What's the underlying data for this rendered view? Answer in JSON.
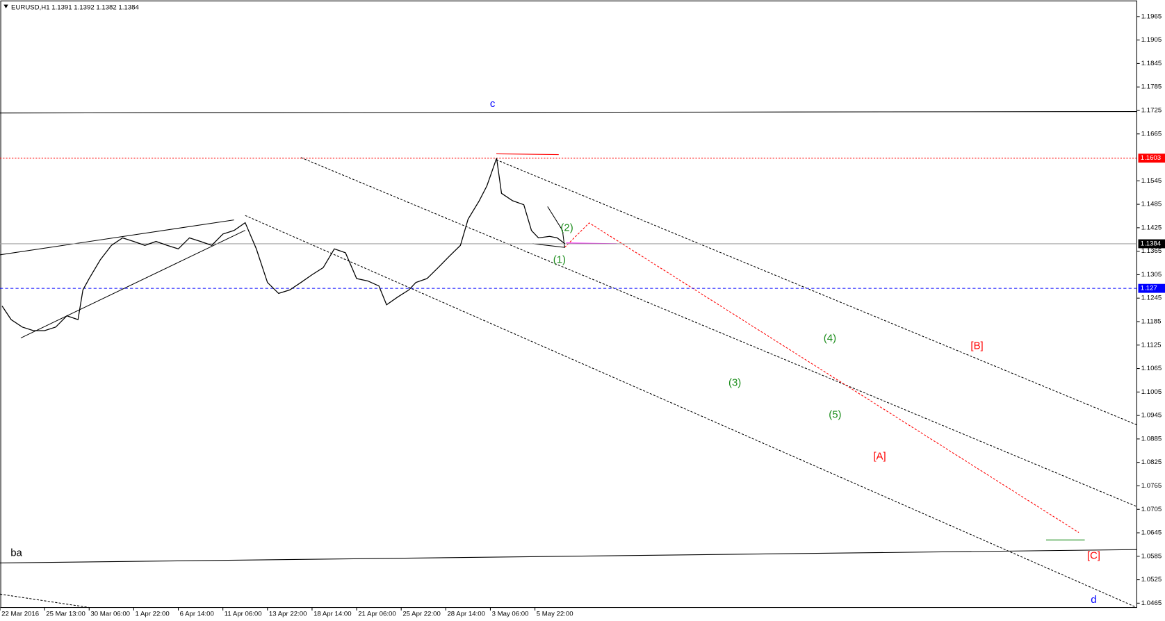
{
  "chart_data": {
    "type": "line",
    "title": "EURUSD,H1  1.1391 1.1392 1.1382 1.1384",
    "color": "#000000",
    "x": [
      3,
      16,
      32,
      48,
      64,
      80,
      96,
      112,
      119,
      128,
      144,
      160,
      176,
      192,
      208,
      224,
      240,
      256,
      272,
      288,
      304,
      320,
      336,
      352,
      368,
      384,
      400,
      416,
      432,
      448,
      464,
      480,
      496,
      512,
      528,
      544,
      555,
      571,
      587,
      597,
      613,
      629,
      645,
      661,
      672,
      688,
      699,
      713,
      720,
      736,
      752,
      763,
      773,
      789,
      800,
      811
    ],
    "values": [
      1.1225,
      1.119,
      1.1171,
      1.1162,
      1.1162,
      1.1171,
      1.12,
      1.119,
      1.1266,
      1.1295,
      1.1343,
      1.138,
      1.1399,
      1.139,
      1.138,
      1.139,
      1.138,
      1.1371,
      1.1399,
      1.139,
      1.138,
      1.1409,
      1.1418,
      1.1438,
      1.1371,
      1.1285,
      1.1257,
      1.1266,
      1.1285,
      1.1305,
      1.1323,
      1.1371,
      1.1361,
      1.1295,
      1.1289,
      1.1276,
      1.1228,
      1.1248,
      1.1266,
      1.1285,
      1.1295,
      1.1323,
      1.1352,
      1.138,
      1.1447,
      1.1494,
      1.1532,
      1.1603,
      1.1513,
      1.1494,
      1.1484,
      1.1418,
      1.1399,
      1.1403,
      1.1399,
      1.1384
    ],
    "xlim": [
      0,
      1632
    ],
    "ylim": [
      1.0454,
      1.2007
    ],
    "xticks": [
      {
        "value": 0,
        "label": "22 Mar 2016"
      },
      {
        "value": 64,
        "label": "25 Mar 13:00"
      },
      {
        "value": 128,
        "label": "30 Mar 06:00"
      },
      {
        "value": 192,
        "label": "1 Apr 22:00"
      },
      {
        "value": 256,
        "label": "6 Apr 14:00"
      },
      {
        "value": 320,
        "label": "11 Apr 06:00"
      },
      {
        "value": 384,
        "label": "13 Apr 22:00"
      },
      {
        "value": 448,
        "label": "18 Apr 14:00"
      },
      {
        "value": 512,
        "label": "21 Apr 06:00"
      },
      {
        "value": 576,
        "label": "25 Apr 22:00"
      },
      {
        "value": 640,
        "label": "28 Apr 14:00"
      },
      {
        "value": 704,
        "label": "3 May 06:00"
      },
      {
        "value": 768,
        "label": "5 May 22:00"
      }
    ],
    "yticks": [
      1.0465,
      1.0525,
      1.0585,
      1.0645,
      1.0705,
      1.0765,
      1.0825,
      1.0885,
      1.0945,
      1.1005,
      1.1065,
      1.1125,
      1.1185,
      1.1245,
      1.1305,
      1.1365,
      1.1425,
      1.1485,
      1.1545,
      1.1665,
      1.1725,
      1.1785,
      1.1845,
      1.1905,
      1.1965
    ],
    "price_levels": [
      {
        "value": 1.1603,
        "color": "#ff0000",
        "dash": "2,2"
      },
      {
        "value": 1.1384,
        "color": "#a0a0a0",
        "dash": "none"
      },
      {
        "value": 1.127,
        "color": "#0000ff",
        "dash": "4,3"
      }
    ],
    "annotations": [
      {
        "text": "c",
        "color": "#0000ff"
      },
      {
        "text": "ba",
        "color": "#000000"
      },
      {
        "text": "d",
        "color": "#0000ff"
      },
      {
        "text": "(1)",
        "color": "#1a8c1a"
      },
      {
        "text": "(2)",
        "color": "#1a8c1a"
      },
      {
        "text": "(3)",
        "color": "#1a8c1a"
      },
      {
        "text": "(4)",
        "color": "#1a8c1a"
      },
      {
        "text": "(5)",
        "color": "#1a8c1a"
      },
      {
        "text": "[A]",
        "color": "#ff0000"
      },
      {
        "text": "[B]",
        "color": "#ff0000"
      },
      {
        "text": "[C]",
        "color": "#ff0000"
      }
    ]
  }
}
